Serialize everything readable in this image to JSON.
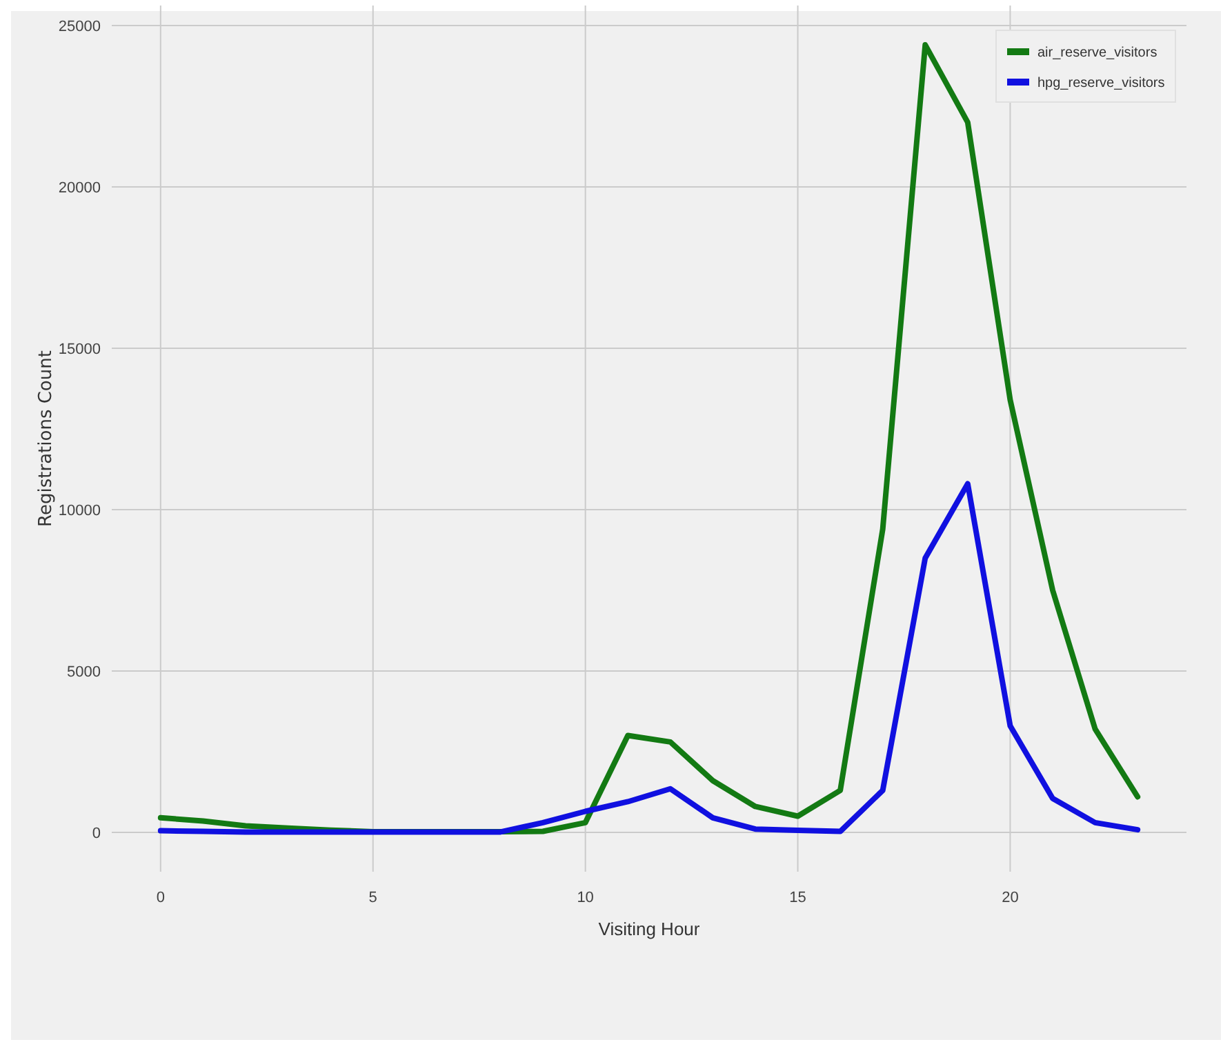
{
  "chart_data": {
    "type": "line",
    "xlabel": "Visiting Hour",
    "ylabel": "Registrations Count",
    "x": [
      0,
      1,
      2,
      3,
      4,
      5,
      6,
      7,
      8,
      9,
      10,
      11,
      12,
      13,
      14,
      15,
      16,
      17,
      18,
      19,
      20,
      21,
      22,
      23
    ],
    "xlim": [
      -1.15,
      24.15
    ],
    "xticks": [
      0,
      5,
      10,
      15,
      20
    ],
    "ylim": [
      -1220,
      25620
    ],
    "yticks": [
      0,
      5000,
      10000,
      15000,
      20000,
      25000
    ],
    "grid": true,
    "legend": "top right",
    "line_style": "solid",
    "marker": "none",
    "series": [
      {
        "name": "air_reserve_visitors",
        "color": "#137a13",
        "values": [
          450,
          350,
          200,
          130,
          70,
          20,
          20,
          20,
          20,
          30,
          300,
          3000,
          2800,
          1600,
          800,
          500,
          1300,
          9400,
          24400,
          22000,
          13400,
          7500,
          3200,
          1100
        ]
      },
      {
        "name": "hpg_reserve_visitors",
        "color": "#1010e0",
        "values": [
          50,
          30,
          10,
          10,
          10,
          10,
          10,
          10,
          10,
          300,
          650,
          950,
          1350,
          450,
          100,
          60,
          30,
          1300,
          8500,
          10800,
          3300,
          1050,
          300,
          80
        ]
      }
    ]
  }
}
